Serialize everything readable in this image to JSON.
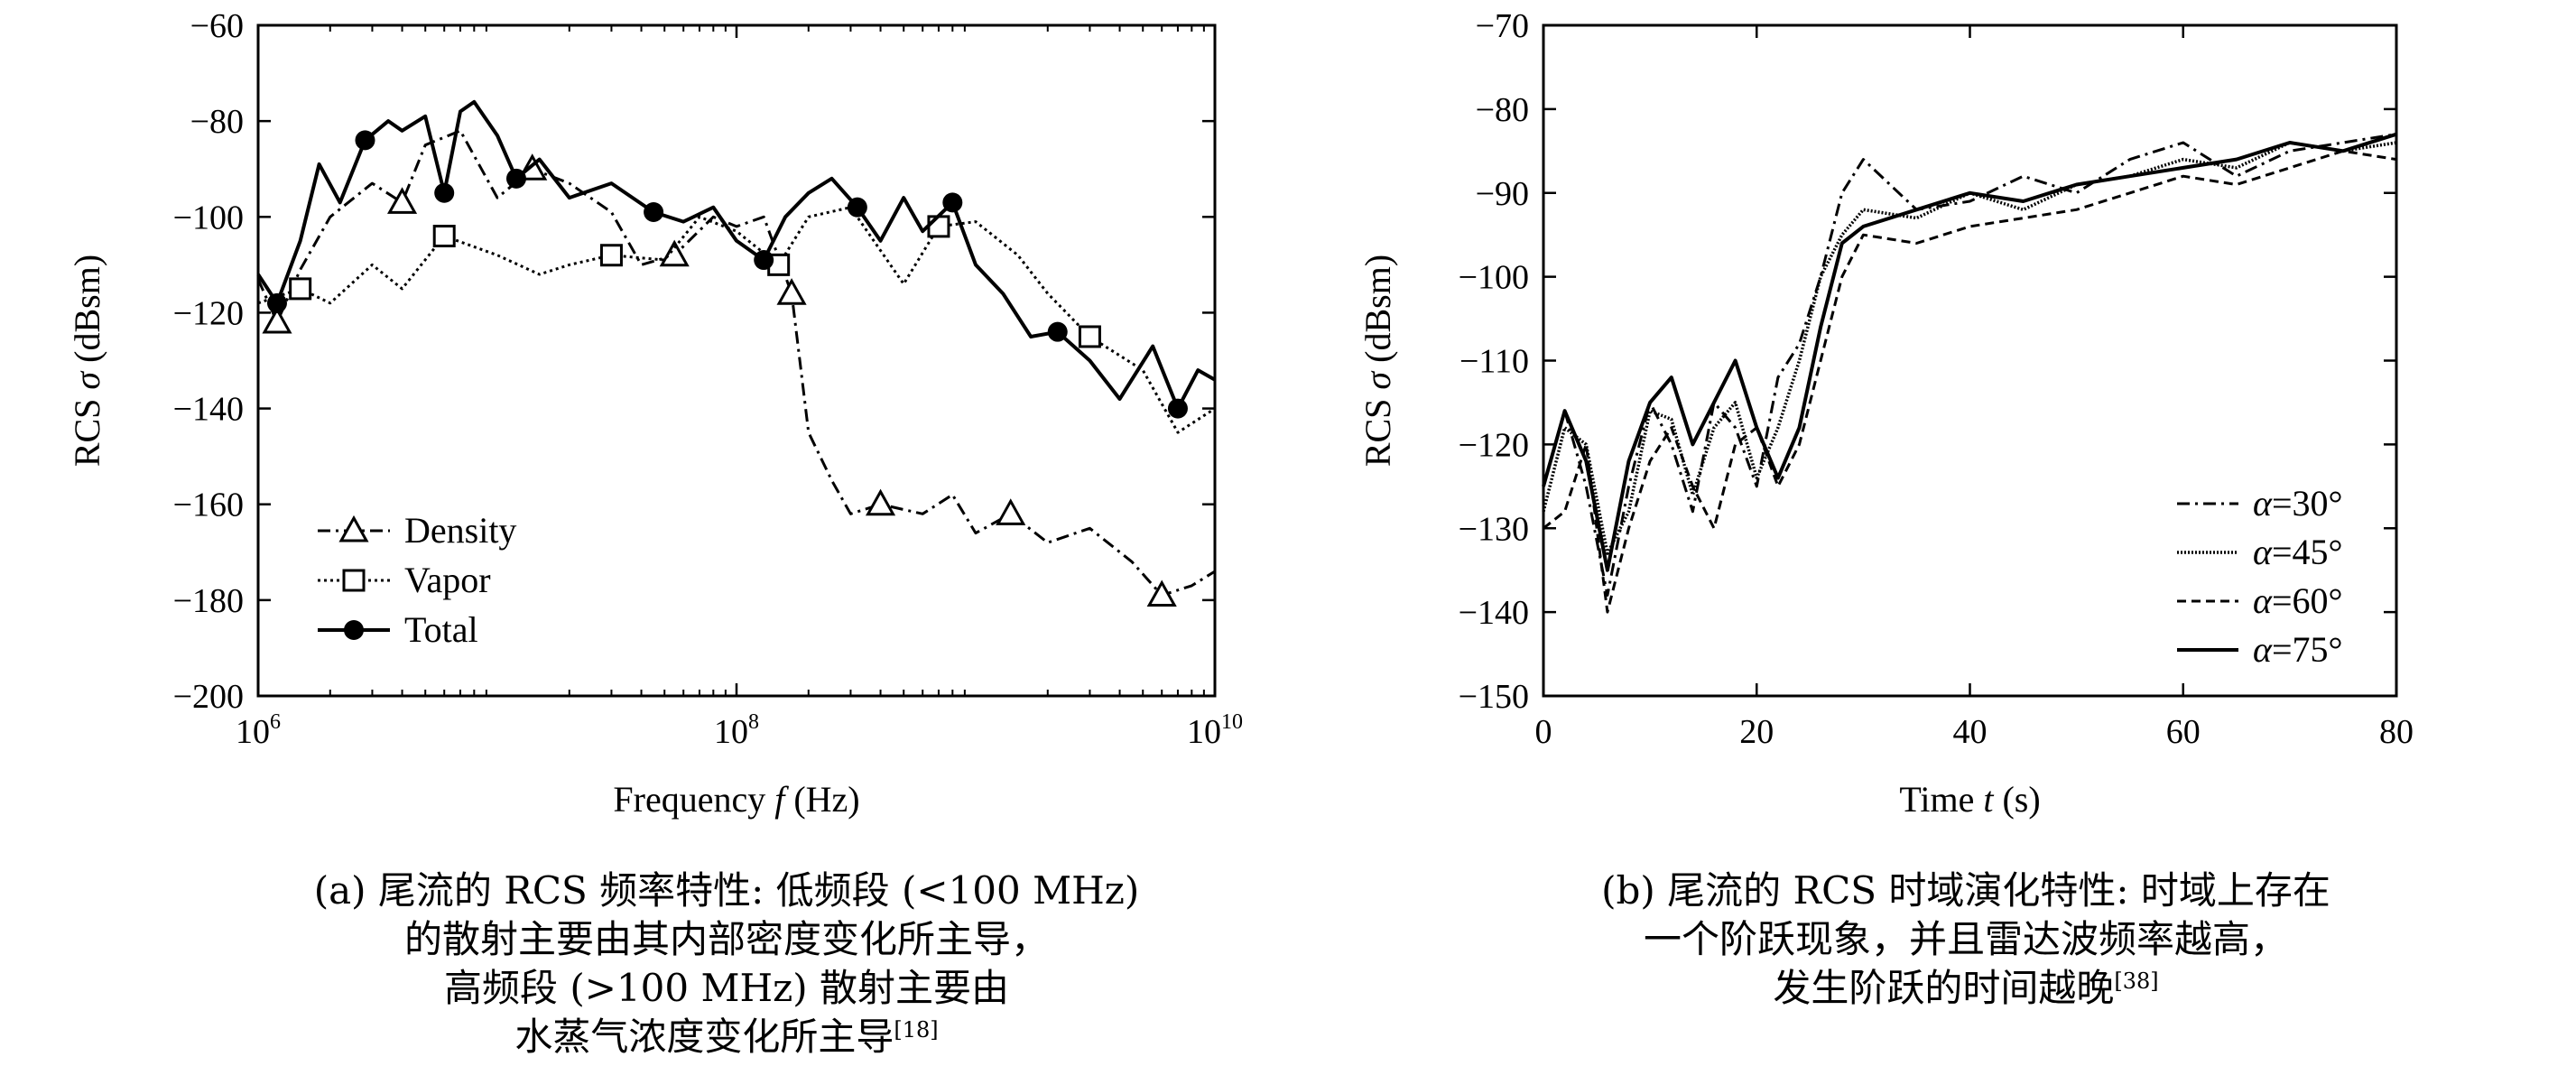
{
  "chart_data": [
    {
      "type": "line",
      "panel": "a",
      "xscale": "log",
      "xlim": [
        1000000,
        10000000000
      ],
      "ylim": [
        -200,
        -60
      ],
      "xticks": [
        1000000,
        100000000,
        10000000000
      ],
      "yticks": [
        -60,
        -80,
        -100,
        -120,
        -140,
        -160,
        -180,
        -200
      ],
      "yticks_labels": [
        "−60",
        "−80",
        "−100",
        "−120",
        "−140",
        "−160",
        "−180",
        "−200"
      ],
      "xticks_base": "10",
      "xticks_exp": [
        "6",
        "8",
        "10"
      ],
      "xlabel_text": "Frequency ",
      "xlabel_var": "f",
      "xlabel_unit": " (Hz)",
      "ylabel_text": "RCS ",
      "ylabel_var": "σ",
      "ylabel_unit": " (dBsm)",
      "legend": "bottom-left",
      "grid": false,
      "series": [
        {
          "name": "Density",
          "style": "dashdot",
          "marker": "triangle",
          "x": [
            1000000,
            1200000,
            1500000,
            2000000,
            3000000,
            4000000,
            5000000,
            7000000,
            10000000,
            14000000,
            20000000,
            30000000,
            40000000,
            55000000,
            80000000,
            100000000,
            130000000,
            170000000,
            200000000,
            250000000,
            300000000,
            400000000,
            600000000,
            800000000,
            1000000000,
            1400000000,
            2000000000,
            3000000000,
            4500000000,
            6000000000,
            8000000000,
            10000000000
          ],
          "y": [
            -113,
            -122,
            -111,
            -100,
            -93,
            -97,
            -85,
            -82,
            -96,
            -90,
            -93,
            -99,
            -110,
            -108,
            -100,
            -102,
            -100,
            -116,
            -145,
            -155,
            -162,
            -160,
            -162,
            -158,
            -166,
            -162,
            -168,
            -165,
            -172,
            -179,
            -177,
            -174
          ]
        },
        {
          "name": "Vapor",
          "style": "dotted",
          "marker": "square",
          "x": [
            1000000,
            1500000,
            2000000,
            3000000,
            4000000,
            6000000,
            10000000,
            15000000,
            20000000,
            30000000,
            50000000,
            70000000,
            100000000,
            150000000,
            200000000,
            300000000,
            500000000,
            700000000,
            1000000000,
            1500000000,
            2000000000,
            3000000000,
            5000000000,
            7000000000,
            10000000000
          ],
          "y": [
            -118,
            -115,
            -118,
            -110,
            -115,
            -104,
            -108,
            -112,
            -110,
            -108,
            -109,
            -100,
            -103,
            -110,
            -100,
            -98,
            -114,
            -102,
            -101,
            -108,
            -116,
            -125,
            -132,
            -145,
            -140
          ]
        },
        {
          "name": "Total",
          "style": "solid",
          "marker": "circle",
          "x": [
            1000000,
            1200000,
            1500000,
            1800000,
            2200000,
            2800000,
            3500000,
            4000000,
            5000000,
            6000000,
            7000000,
            8000000,
            10000000,
            12000000,
            15000000,
            20000000,
            30000000,
            45000000,
            60000000,
            80000000,
            100000000,
            130000000,
            160000000,
            200000000,
            250000000,
            320000000,
            400000000,
            500000000,
            600000000,
            800000000,
            1000000000,
            1300000000,
            1700000000,
            2200000000,
            3000000000,
            4000000000,
            5500000000,
            7000000000,
            8500000000,
            10000000000
          ],
          "y": [
            -112,
            -118,
            -105,
            -89,
            -97,
            -84,
            -80,
            -82,
            -79,
            -95,
            -78,
            -76,
            -83,
            -92,
            -88,
            -96,
            -93,
            -99,
            -101,
            -98,
            -105,
            -109,
            -100,
            -95,
            -92,
            -98,
            -105,
            -96,
            -103,
            -97,
            -110,
            -116,
            -125,
            -124,
            -130,
            -138,
            -127,
            -140,
            -132,
            -134
          ]
        }
      ]
    },
    {
      "type": "line",
      "panel": "b",
      "xlim": [
        0,
        80
      ],
      "ylim": [
        -150,
        -70
      ],
      "xticks": [
        0,
        20,
        40,
        60,
        80
      ],
      "xticks_labels": [
        "0",
        "20",
        "40",
        "60",
        "80"
      ],
      "yticks": [
        -70,
        -80,
        -90,
        -100,
        -110,
        -120,
        -130,
        -140,
        -150
      ],
      "yticks_labels": [
        "−70",
        "−80",
        "−90",
        "−100",
        "−110",
        "−120",
        "−130",
        "−140",
        "−150"
      ],
      "xlabel_text": "Time ",
      "xlabel_var": "t",
      "xlabel_unit": " (s)",
      "ylabel_text": "RCS ",
      "ylabel_var": "σ",
      "ylabel_unit": " (dBsm)",
      "legend": "bottom-right",
      "grid": false,
      "series": [
        {
          "name_var": "α",
          "name_rest": "=30°",
          "style": "dashdot",
          "x": [
            0,
            2,
            4,
            6,
            8,
            10,
            12,
            14,
            16,
            18,
            20,
            22,
            24,
            26,
            28,
            30,
            35,
            40,
            45,
            50,
            55,
            60,
            65,
            70,
            75,
            80
          ],
          "y": [
            -125,
            -116,
            -125,
            -138,
            -125,
            -115,
            -120,
            -128,
            -115,
            -118,
            -125,
            -112,
            -108,
            -100,
            -90,
            -86,
            -92,
            -91,
            -88,
            -90,
            -86,
            -84,
            -88,
            -85,
            -84,
            -83
          ]
        },
        {
          "name_var": "α",
          "name_rest": "=45°",
          "style": "dotted-dense",
          "x": [
            0,
            2,
            4,
            6,
            8,
            10,
            12,
            14,
            16,
            18,
            20,
            22,
            24,
            26,
            28,
            30,
            35,
            40,
            45,
            50,
            55,
            60,
            65,
            70,
            75,
            80
          ],
          "y": [
            -128,
            -118,
            -120,
            -133,
            -128,
            -116,
            -117,
            -126,
            -118,
            -115,
            -124,
            -118,
            -110,
            -100,
            -95,
            -92,
            -93,
            -90,
            -92,
            -89,
            -88,
            -86,
            -87,
            -84,
            -85,
            -84
          ]
        },
        {
          "name_var": "α",
          "name_rest": "=60°",
          "style": "dashed",
          "x": [
            0,
            2,
            4,
            6,
            8,
            10,
            12,
            14,
            16,
            18,
            20,
            22,
            24,
            26,
            28,
            30,
            35,
            40,
            45,
            50,
            55,
            60,
            65,
            70,
            75,
            80
          ],
          "y": [
            -130,
            -128,
            -120,
            -140,
            -130,
            -122,
            -118,
            -125,
            -130,
            -120,
            -118,
            -125,
            -120,
            -110,
            -100,
            -95,
            -96,
            -94,
            -93,
            -92,
            -90,
            -88,
            -89,
            -87,
            -85,
            -86
          ]
        },
        {
          "name_var": "α",
          "name_rest": "=75°",
          "style": "solid",
          "x": [
            0,
            2,
            4,
            6,
            8,
            10,
            12,
            14,
            16,
            18,
            20,
            22,
            24,
            26,
            28,
            30,
            35,
            40,
            45,
            50,
            55,
            60,
            65,
            70,
            75,
            80
          ],
          "y": [
            -125,
            -116,
            -122,
            -135,
            -122,
            -115,
            -112,
            -120,
            -115,
            -110,
            -118,
            -124,
            -118,
            -106,
            -96,
            -94,
            -92,
            -90,
            -91,
            -89,
            -88,
            -87,
            -86,
            -84,
            -85,
            -83
          ]
        }
      ]
    }
  ],
  "captions": {
    "a": [
      "(a) 尾流的 RCS 频率特性: 低频段 (<100 MHz)",
      "的散射主要由其内部密度变化所主导，",
      "高频段 (>100 MHz) 散射主要由",
      "水蒸气浓度变化所主导"
    ],
    "a_ref": "[18]",
    "b": [
      "(b) 尾流的 RCS 时域演化特性: 时域上存在",
      "一个阶跃现象，并且雷达波频率越高，",
      "发生阶跃的时间越晚"
    ],
    "b_ref": "[38]"
  }
}
